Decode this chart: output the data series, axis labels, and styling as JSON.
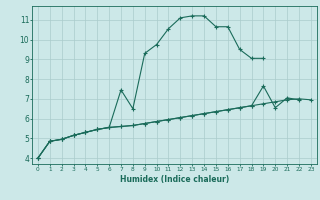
{
  "xlabel": "Humidex (Indice chaleur)",
  "background_color": "#cce8e8",
  "grid_color": "#aacccc",
  "line_color": "#1a6b5a",
  "xlim": [
    -0.5,
    23.5
  ],
  "ylim": [
    3.7,
    11.7
  ],
  "xticks": [
    0,
    1,
    2,
    3,
    4,
    5,
    6,
    7,
    8,
    9,
    10,
    11,
    12,
    13,
    14,
    15,
    16,
    17,
    18,
    19,
    20,
    21,
    22,
    23
  ],
  "yticks": [
    4,
    5,
    6,
    7,
    8,
    9,
    10,
    11
  ],
  "line1_x": [
    0,
    1,
    2,
    3,
    4,
    5,
    6,
    7,
    8,
    9,
    10,
    11,
    12,
    13,
    14,
    15,
    16,
    17,
    18,
    19,
    20,
    21,
    22,
    23
  ],
  "line1_y": [
    4.0,
    4.85,
    4.95,
    5.15,
    5.3,
    5.45,
    5.55,
    5.6,
    5.65,
    5.75,
    5.85,
    5.95,
    6.05,
    6.15,
    6.25,
    6.35,
    6.45,
    6.55,
    6.65,
    6.75,
    6.85,
    6.95,
    7.0,
    6.95
  ],
  "line2_x": [
    0,
    1,
    2,
    3,
    4,
    5,
    6,
    7,
    8,
    9,
    10,
    11,
    12,
    13,
    14,
    15,
    16,
    17,
    18,
    19
  ],
  "line2_y": [
    4.0,
    4.85,
    4.95,
    5.15,
    5.3,
    5.45,
    5.55,
    7.45,
    6.5,
    9.3,
    9.75,
    10.55,
    11.1,
    11.2,
    11.2,
    10.65,
    10.65,
    9.5,
    9.05,
    9.05
  ],
  "line3_x": [
    0,
    1,
    2,
    3,
    4,
    5,
    6,
    7,
    8,
    9,
    10,
    11,
    12,
    13,
    14,
    15,
    16,
    17,
    18,
    19,
    20,
    21,
    22
  ],
  "line3_y": [
    4.0,
    4.85,
    4.95,
    5.15,
    5.3,
    5.45,
    5.55,
    5.6,
    5.65,
    5.75,
    5.85,
    5.95,
    6.05,
    6.15,
    6.25,
    6.35,
    6.45,
    6.55,
    6.65,
    7.65,
    6.55,
    7.05,
    6.95
  ]
}
